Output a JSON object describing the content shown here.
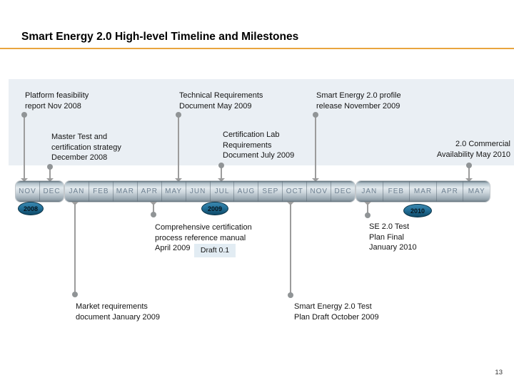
{
  "slide": {
    "title": "Smart Energy 2.0 High-level Timeline and Milestones",
    "page_number": "13",
    "accent_color": "#e9a43e",
    "band_color": "#eaeff4"
  },
  "timeline": {
    "segments": [
      {
        "year": "2008",
        "months": [
          "NOV",
          "DEC"
        ]
      },
      {
        "year": "2009",
        "months": [
          "JAN",
          "FEB",
          "MAR",
          "APR",
          "MAY",
          "JUN",
          "JUL",
          "AUG",
          "SEP",
          "OCT",
          "NOV",
          "DEC"
        ]
      },
      {
        "year": "2010",
        "months": [
          "JAN",
          "FEB",
          "MAR",
          "APR",
          "MAY"
        ]
      }
    ]
  },
  "milestones": {
    "above": {
      "platform_feasibility": {
        "text": "Platform feasibility\nreport Nov 2008"
      },
      "master_test": {
        "text": "Master Test and\ncertification strategy\nDecember 2008"
      },
      "technical_requirements": {
        "text": "Technical Requirements\nDocument May 2009"
      },
      "certification_lab": {
        "text": "Certification Lab\nRequirements\nDocument July 2009"
      },
      "profile_release": {
        "text": "Smart Energy 2.0 profile\nrelease November 2009"
      },
      "commercial_availability": {
        "text": "2.0 Commercial\nAvailability May 2010"
      }
    },
    "below": {
      "comprehensive_certification": {
        "text": "Comprehensive certification\nprocess reference manual\nApril 2009",
        "badge": "Draft 0.1"
      },
      "se_test_plan_final": {
        "text": "SE 2.0 Test\nPlan Final\nJanuary 2010"
      },
      "market_requirements": {
        "text": "Market requirements\ndocument January 2009"
      },
      "test_plan_draft": {
        "text": "Smart Energy 2.0 Test\nPlan Draft October 2009"
      }
    }
  }
}
